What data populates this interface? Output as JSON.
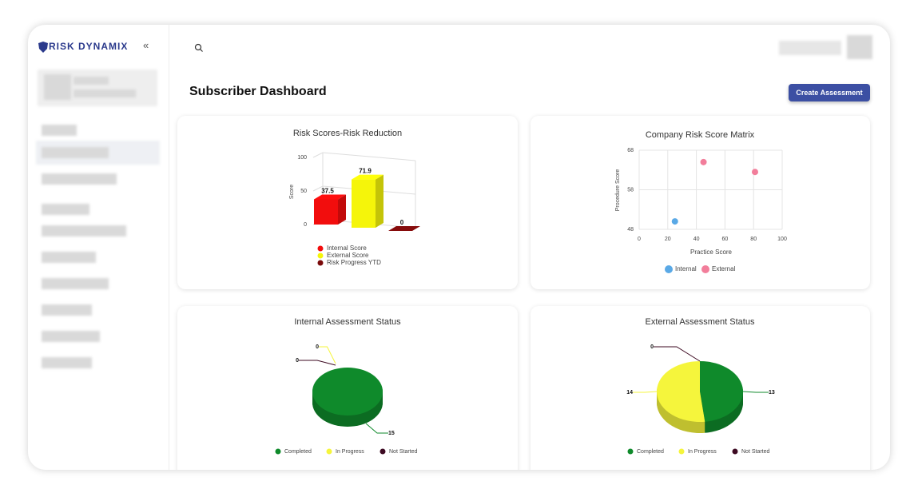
{
  "brand": "RISK DYNAMIX",
  "header": {
    "title": "Subscriber Dashboard",
    "button": "Create Assessment"
  },
  "chart_data": [
    {
      "type": "bar3d",
      "title": "Risk Scores-Risk Reduction",
      "ylabel": "Score",
      "categories": [
        "Internal Score",
        "External Score",
        "Risk Progress YTD"
      ],
      "values": [
        37.5,
        71.9,
        0
      ],
      "colors": [
        "#f20d0d",
        "#f5f50a",
        "#7a0a0a"
      ],
      "ylim": [
        0,
        100
      ],
      "yticks": [
        0,
        50,
        100
      ]
    },
    {
      "type": "scatter",
      "title": "Company Risk Score Matrix",
      "xlabel": "Practice Score",
      "ylabel": "Procedure Score",
      "series": [
        {
          "name": "Internal",
          "color": "#5aa9e6",
          "x": [
            25
          ],
          "values": [
            50
          ]
        },
        {
          "name": "External",
          "color": "#f27e9b",
          "x": [
            45,
            81
          ],
          "values": [
            65,
            62.5
          ]
        }
      ],
      "xlim": [
        0,
        100
      ],
      "xticks": [
        0,
        20,
        40,
        60,
        80,
        100
      ],
      "ylim": [
        48,
        68
      ],
      "yticks": [
        48,
        58,
        68
      ],
      "grid": true
    },
    {
      "type": "pie3d",
      "title": "Internal Assessment Status",
      "categories": [
        "Completed",
        "In Progress",
        "Not Started"
      ],
      "values": [
        15,
        0,
        0
      ],
      "colors": [
        "#0f8a2b",
        "#f5f53c",
        "#3d0a22"
      ]
    },
    {
      "type": "pie3d",
      "title": "External Assessment Status",
      "categories": [
        "Completed",
        "In Progress",
        "Not Started"
      ],
      "values": [
        13,
        14,
        0
      ],
      "colors": [
        "#0f8a2b",
        "#f5f53c",
        "#3d0a22"
      ]
    }
  ]
}
